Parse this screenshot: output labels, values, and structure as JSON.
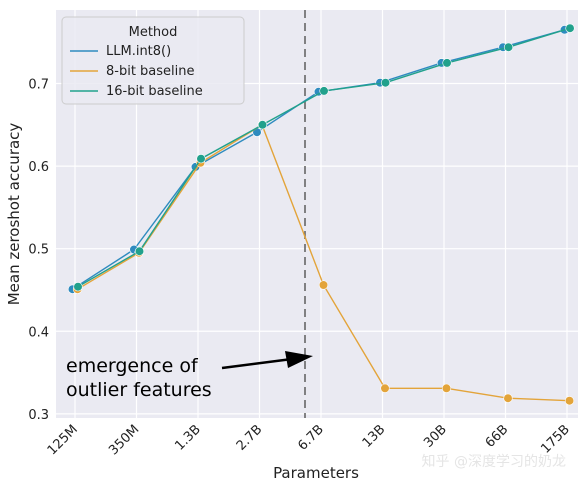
{
  "chart_data": {
    "type": "line",
    "xlabel": "Parameters",
    "ylabel": "Mean zeroshot accuracy",
    "categories": [
      "125M",
      "350M",
      "1.3B",
      "2.7B",
      "6.7B",
      "13B",
      "30B",
      "66B",
      "175B"
    ],
    "yticks": [
      "0.3",
      "0.4",
      "0.5",
      "0.6",
      "0.7"
    ],
    "ylim": [
      0.295,
      0.789
    ],
    "grid": true,
    "series": [
      {
        "name": "LLM.int8()",
        "color": "#2e8bbf",
        "values": [
          0.451,
          0.499,
          0.599,
          0.641,
          0.69,
          0.701,
          0.725,
          0.744,
          0.765
        ]
      },
      {
        "name": "8-bit baseline",
        "color": "#e3a43a",
        "values": [
          0.451,
          0.495,
          0.604,
          0.65,
          0.456,
          0.331,
          0.331,
          0.319,
          0.316
        ]
      },
      {
        "name": "16-bit baseline",
        "color": "#21a18c",
        "values": [
          0.454,
          0.497,
          0.609,
          0.65,
          0.691,
          0.701,
          0.725,
          0.744,
          0.767
        ]
      }
    ],
    "legend": {
      "title": "Method",
      "location": "top-left"
    },
    "annotation": {
      "lines": [
        "emergence of",
        "outlier features"
      ],
      "marker_at_category": "6.7B"
    }
  },
  "watermark": "知乎 @深度学习的奶龙"
}
